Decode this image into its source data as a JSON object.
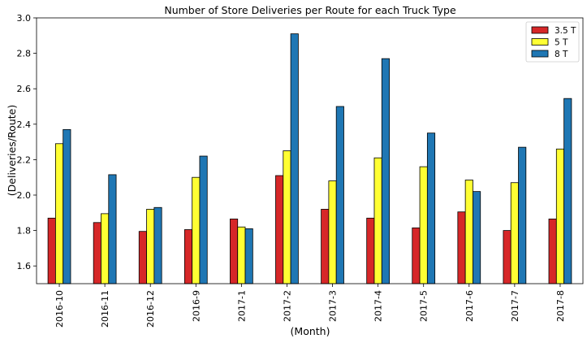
{
  "chart_data": {
    "type": "bar",
    "title": "Number of Store Deliveries per Route for each Truck Type",
    "xlabel": "(Month)",
    "ylabel": "(Deliveries/Route)",
    "ylim": [
      1.5,
      3.0
    ],
    "yticks": [
      "1.6",
      "1.8",
      "2.0",
      "2.2",
      "2.4",
      "2.6",
      "2.8",
      "3.0"
    ],
    "categories": [
      "2016-10",
      "2016-11",
      "2016-12",
      "2016-9",
      "2017-1",
      "2017-2",
      "2017-3",
      "2017-4",
      "2017-5",
      "2017-6",
      "2017-7",
      "2017-8"
    ],
    "series": [
      {
        "name": "3.5 T",
        "color": "#d62728",
        "values": [
          1.87,
          1.845,
          1.795,
          1.805,
          1.865,
          2.11,
          1.92,
          1.87,
          1.815,
          1.905,
          1.8,
          1.865
        ]
      },
      {
        "name": "5 T",
        "color": "#ffff33",
        "values": [
          2.29,
          1.895,
          1.92,
          2.1,
          1.82,
          2.25,
          2.08,
          2.21,
          2.16,
          2.085,
          2.07,
          2.26
        ]
      },
      {
        "name": "8 T",
        "color": "#1f77b4",
        "values": [
          2.37,
          2.115,
          1.93,
          2.22,
          1.81,
          2.91,
          2.5,
          2.77,
          2.35,
          2.02,
          2.27,
          2.545
        ]
      }
    ],
    "grid": false,
    "legend": "top-right"
  }
}
